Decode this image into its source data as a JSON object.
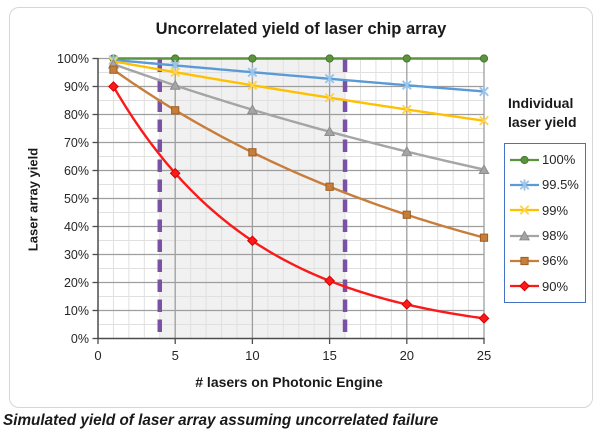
{
  "title": "Uncorrelated yield of laser chip array",
  "caption": "Simulated yield of laser array assuming uncorrelated failure",
  "legend": {
    "title": "Individual\nlaser yield",
    "border_color": "#4472C4"
  },
  "chart_data": {
    "type": "line",
    "title": "Uncorrelated yield of laser chip array",
    "xlabel": "# lasers on Photonic Engine",
    "ylabel": "Laser array yield",
    "xlim": [
      0,
      25
    ],
    "ylim": [
      0,
      100
    ],
    "x_ticks": [
      0,
      5,
      10,
      15,
      20,
      25
    ],
    "y_ticks": [
      "0%",
      "10%",
      "20%",
      "30%",
      "40%",
      "50%",
      "60%",
      "70%",
      "80%",
      "90%",
      "100%"
    ],
    "x_minor_step": 1,
    "y_minor_step": 5,
    "grid": {
      "minor_color": "#E0E0E0",
      "major_color": "#9E9E9E",
      "axis_color": "#4D4D4D"
    },
    "highlight_band": {
      "from": 4,
      "to": 16,
      "fill": "#F1F1F1",
      "edge_color": "#7A52A5",
      "edge_style": "dashed"
    },
    "legend_title": "Individual laser yield",
    "legend_position": "right",
    "marker_x": [
      1,
      5,
      10,
      15,
      20,
      25
    ],
    "series": [
      {
        "name": "100%",
        "p": 1.0,
        "color": "#5A943C",
        "marker": "circle",
        "marker_fill": "#5A943C",
        "marker_stroke": "#47772E",
        "values": [
          100,
          100,
          100,
          100,
          100,
          100
        ]
      },
      {
        "name": "99.5%",
        "p": 0.995,
        "color": "#5B9BD5",
        "marker": "asterisk",
        "marker_fill": "none",
        "marker_stroke": "#9DC3E6",
        "values": [
          99.5,
          97.5,
          95.1,
          92.8,
          90.5,
          88.2
        ]
      },
      {
        "name": "99%",
        "p": 0.99,
        "color": "#FFC000",
        "marker": "x",
        "marker_fill": "none",
        "marker_stroke": "#FFD34D",
        "values": [
          99,
          95.1,
          90.4,
          86.0,
          81.8,
          77.8
        ]
      },
      {
        "name": "98%",
        "p": 0.98,
        "color": "#A5A5A5",
        "marker": "triangle",
        "marker_fill": "#A5A5A5",
        "marker_stroke": "#8C8C8C",
        "values": [
          98,
          90.4,
          81.7,
          73.9,
          66.8,
          60.3
        ]
      },
      {
        "name": "96%",
        "p": 0.96,
        "color": "#C87E3B",
        "marker": "square",
        "marker_fill": "#C87E3B",
        "marker_stroke": "#9E5E20",
        "values": [
          96,
          81.5,
          66.5,
          54.2,
          44.2,
          36.0
        ]
      },
      {
        "name": "90%",
        "p": 0.9,
        "color": "#FA1A1A",
        "marker": "diamond",
        "marker_fill": "#FA1A1A",
        "marker_stroke": "#D90000",
        "values": [
          90,
          59.0,
          34.9,
          20.6,
          12.2,
          7.2
        ]
      }
    ]
  }
}
